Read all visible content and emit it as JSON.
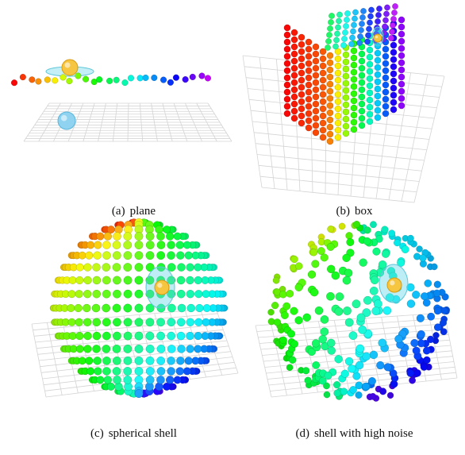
{
  "figure": {
    "subfigures": [
      {
        "label": "(a)",
        "caption": "plane"
      },
      {
        "label": "(b)",
        "caption": "box"
      },
      {
        "label": "(c)",
        "caption": "spherical shell"
      },
      {
        "label": "(d)",
        "caption": "shell with high noise"
      }
    ]
  }
}
